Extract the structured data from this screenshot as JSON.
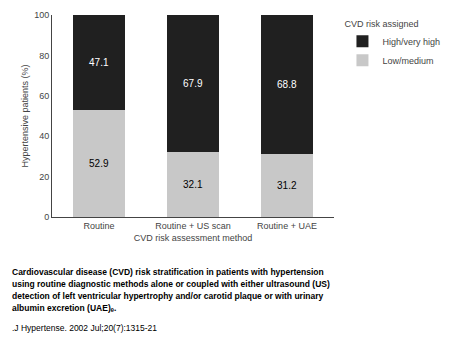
{
  "chart_data": {
    "type": "bar",
    "stacked": true,
    "data_labels": true,
    "grid": false,
    "legend": "right",
    "categories": [
      "Routine",
      "Routine + US scan",
      "Routine + UAE"
    ],
    "series": [
      {
        "name": "Low/medium",
        "color": "#c8c8c8",
        "values": [
          52.9,
          32.1,
          31.2
        ]
      },
      {
        "name": "High/very high",
        "color": "#202020",
        "values": [
          47.1,
          67.9,
          68.8
        ]
      }
    ],
    "legend_title": "CVD risk assigned",
    "xlabel": "CVD risk assessment method",
    "ylabel": "Hypertensive patients (%)",
    "ylim": [
      0,
      100
    ],
    "yticks": [
      0,
      20,
      40,
      60,
      80,
      100
    ],
    "annotations": [
      "Cardiovascular disease (CVD) risk stratification in patients with hypertension",
      "using routine diagnostic methods alone or coupled with either ultrasound (US)",
      "detection of left ventricular hypertrophy and/or carotid plaque or with urinary",
      "albumin excretion (UAE)ₑ.",
      ".J Hypertense. 2002 Jul;20(7):1315-21"
    ]
  }
}
